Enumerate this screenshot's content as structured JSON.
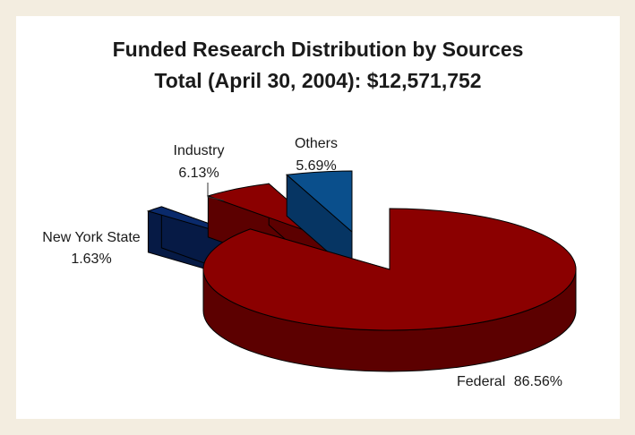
{
  "chart_data": {
    "type": "pie",
    "style": "3d-exploded",
    "title": "Funded Research Distribution by Sources",
    "subtitle": "Total (April 30, 2004): $12,571,752",
    "slices": [
      {
        "key": "federal",
        "name": "Federal",
        "value": 86.56,
        "label_value": "86.56%",
        "color": "#8b0000",
        "side_color": "#5c0000"
      },
      {
        "key": "nys",
        "name": "New York State",
        "value": 1.63,
        "label_value": "1.63%",
        "color": "#0a2a6b",
        "side_color": "#061a45"
      },
      {
        "key": "industry",
        "name": "Industry",
        "value": 6.13,
        "label_value": "6.13%",
        "color": "#8b0000",
        "side_color": "#5c0000"
      },
      {
        "key": "others",
        "name": "Others",
        "value": 5.69,
        "label_value": "5.69%",
        "color": "#0a4f8c",
        "side_color": "#063563"
      }
    ]
  }
}
